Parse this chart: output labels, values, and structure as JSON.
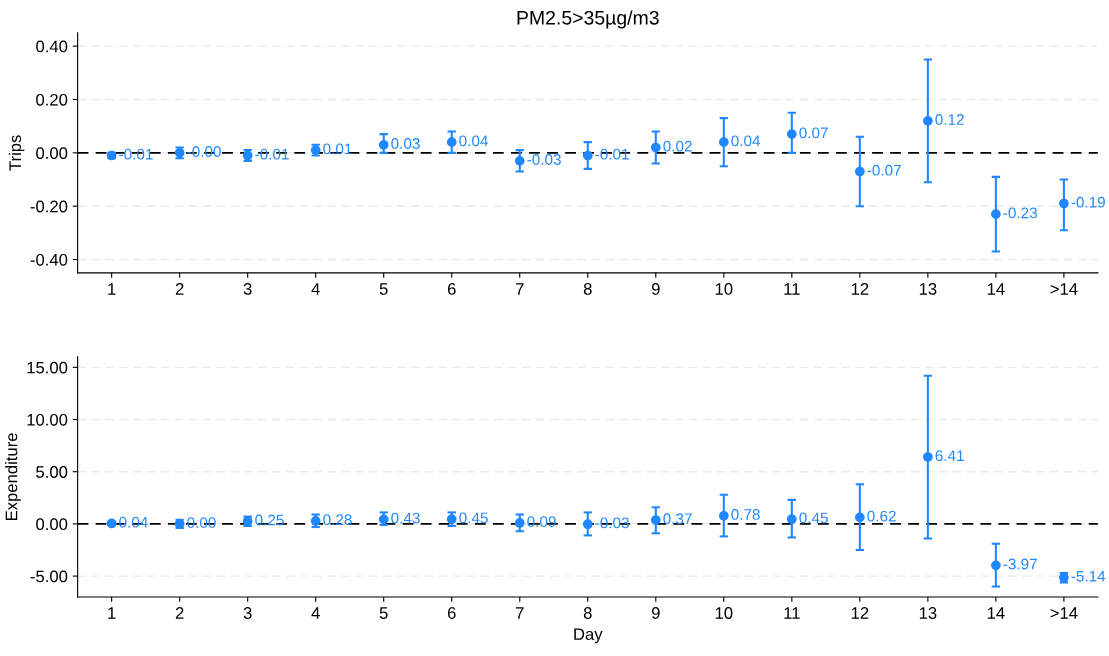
{
  "chart_data": [
    {
      "type": "scatter",
      "title": "PM2.5>35µg/m3",
      "ylabel": "Trips",
      "categories": [
        "1",
        "2",
        "3",
        "4",
        "5",
        "6",
        "7",
        "8",
        "9",
        "10",
        "11",
        "12",
        "13",
        "14",
        ">14"
      ],
      "series": [
        {
          "color": "#1f87ff",
          "values": [
            -0.01,
            -0.0,
            -0.01,
            0.01,
            0.03,
            0.04,
            -0.03,
            -0.01,
            0.02,
            0.04,
            0.07,
            -0.07,
            0.12,
            -0.23,
            -0.19
          ],
          "value_labels": [
            "-0.01",
            "-0.00",
            "-0.01",
            "0.01",
            "0.03",
            "0.04",
            "-0.03",
            "-0.01",
            "0.02",
            "0.04",
            "0.07",
            "-0.07",
            "0.12",
            "-0.23",
            "-0.19"
          ],
          "errors": [
            [
              -0.02,
              0.0
            ],
            [
              -0.02,
              0.02
            ],
            [
              -0.03,
              0.01
            ],
            [
              -0.01,
              0.03
            ],
            [
              0.0,
              0.07
            ],
            [
              0.0,
              0.08
            ],
            [
              -0.07,
              0.01
            ],
            [
              -0.06,
              0.04
            ],
            [
              -0.04,
              0.08
            ],
            [
              -0.05,
              0.13
            ],
            [
              0.0,
              0.15
            ],
            [
              -0.2,
              0.06
            ],
            [
              -0.11,
              0.35
            ],
            [
              -0.37,
              -0.09
            ],
            [
              -0.29,
              -0.1
            ]
          ]
        }
      ],
      "marker": "circle",
      "ylim": [
        -0.45,
        0.45
      ],
      "yticks": [
        {
          "value": -0.4,
          "label": "-0.40"
        },
        {
          "value": -0.2,
          "label": "-0.20"
        },
        {
          "value": 0,
          "label": "0.00"
        },
        {
          "value": 0.2,
          "label": "0.20"
        },
        {
          "value": 0.4,
          "label": "0.40"
        }
      ],
      "ref_lines": [
        {
          "axis": "y",
          "value": 0,
          "color": "#000000",
          "line_style": "dashed"
        }
      ],
      "grid": "y"
    },
    {
      "type": "scatter",
      "ylabel": "Expenditure",
      "xlabel": "Day",
      "categories": [
        "1",
        "2",
        "3",
        "4",
        "5",
        "6",
        "7",
        "8",
        "9",
        "10",
        "11",
        "12",
        "13",
        "14",
        ">14"
      ],
      "series": [
        {
          "color": "#1f87ff",
          "values": [
            0.04,
            0.0,
            0.25,
            0.28,
            0.43,
            0.45,
            0.09,
            -0.03,
            0.37,
            0.78,
            0.45,
            0.62,
            6.41,
            -3.97,
            -5.14
          ],
          "value_labels": [
            "0.04",
            "0.00",
            "0.25",
            "0.28",
            "0.43",
            "0.45",
            "0.09",
            "-0.03",
            "0.37",
            "0.78",
            "0.45",
            "0.62",
            "6.41",
            "-3.97",
            "-5.14"
          ],
          "errors": [
            [
              -0.1,
              0.2
            ],
            [
              -0.4,
              0.4
            ],
            [
              -0.2,
              0.7
            ],
            [
              -0.3,
              0.9
            ],
            [
              -0.1,
              1.1
            ],
            [
              -0.2,
              1.1
            ],
            [
              -0.7,
              0.9
            ],
            [
              -1.1,
              1.1
            ],
            [
              -0.9,
              1.6
            ],
            [
              -1.2,
              2.8
            ],
            [
              -1.3,
              2.3
            ],
            [
              -2.5,
              3.8
            ],
            [
              -1.4,
              14.2
            ],
            [
              -6.0,
              -1.9
            ],
            [
              -5.6,
              -4.7
            ]
          ]
        }
      ],
      "marker": "circle",
      "ylim": [
        -7,
        16
      ],
      "yticks": [
        {
          "value": -5,
          "label": "-5.00"
        },
        {
          "value": 0,
          "label": "0.00"
        },
        {
          "value": 5,
          "label": "5.00"
        },
        {
          "value": 10,
          "label": "10.00"
        },
        {
          "value": 15,
          "label": "15.00"
        }
      ],
      "ref_lines": [
        {
          "axis": "y",
          "value": 0,
          "color": "#000000",
          "line_style": "dashed"
        }
      ],
      "grid": "y"
    }
  ]
}
